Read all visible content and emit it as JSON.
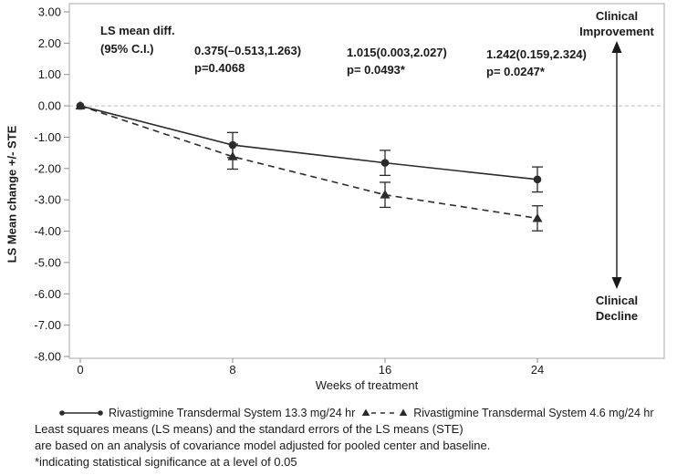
{
  "colors": {
    "text": "#1a1a1a",
    "series": "#2b2b2b",
    "frame": "#a9a9a9",
    "tick": "#8c8c8c",
    "zero_line": "#bdbdbd"
  },
  "chart_data": {
    "type": "line",
    "title": "",
    "xlabel": "Weeks of treatment",
    "ylabel": "LS Mean change +/- STE",
    "x": [
      0,
      8,
      16,
      24
    ],
    "x_tick_labels": [
      "0",
      "8",
      "16",
      "24"
    ],
    "ylim": [
      -8,
      3
    ],
    "y_tick_values": [
      3,
      2,
      1,
      0,
      -1,
      -2,
      -3,
      -4,
      -5,
      -6,
      -7,
      -8
    ],
    "y_tick_labels": [
      "3.00",
      "2.00",
      "1.00",
      "0.00",
      "-1.00",
      "-2.00",
      "-3.00",
      "-4.00",
      "-5.00",
      "-6.00",
      "-7.00",
      "-8.00"
    ],
    "zero_reference_line_y": 0,
    "grid": false,
    "legend_position": "bottom",
    "series": [
      {
        "name": "Rivastigmine Transdermal System 13.3 mg/24 hr",
        "marker": "circle",
        "line_style": "solid",
        "values": [
          0.0,
          -1.25,
          -1.82,
          -2.35
        ],
        "ste": [
          0,
          0.4,
          0.4,
          0.4
        ]
      },
      {
        "name": "Rivastigmine Transdermal System 4.6 mg/24 hr",
        "marker": "triangle",
        "line_style": "dashed",
        "values": [
          0.0,
          -1.62,
          -2.84,
          -3.59
        ],
        "ste": [
          0,
          0.4,
          0.4,
          0.4
        ]
      }
    ],
    "annotations": {
      "header": {
        "line1": "LS mean diff.",
        "line2": "(95% C.I.)"
      },
      "stats": [
        {
          "week": 8,
          "line1": "0.375(–0.513,1.263)",
          "line2": "p=0.4068"
        },
        {
          "week": 16,
          "line1": "1.015(0.003,2.027)",
          "line2": "p= 0.0493*"
        },
        {
          "week": 24,
          "line1": "1.242(0.159,2.324)",
          "line2": "p= 0.0247*"
        }
      ],
      "improvement": {
        "line1": "Clinical",
        "line2": "Improvement"
      },
      "decline": {
        "line1": "Clinical",
        "line2": "Decline"
      }
    }
  },
  "footnotes": [
    "Least squares means (LS means) and the standard errors of the LS means (STE)",
    "are based on an analysis of covariance model adjusted for pooled center and baseline.",
    "*indicating statistical significance at a level of 0.05"
  ]
}
